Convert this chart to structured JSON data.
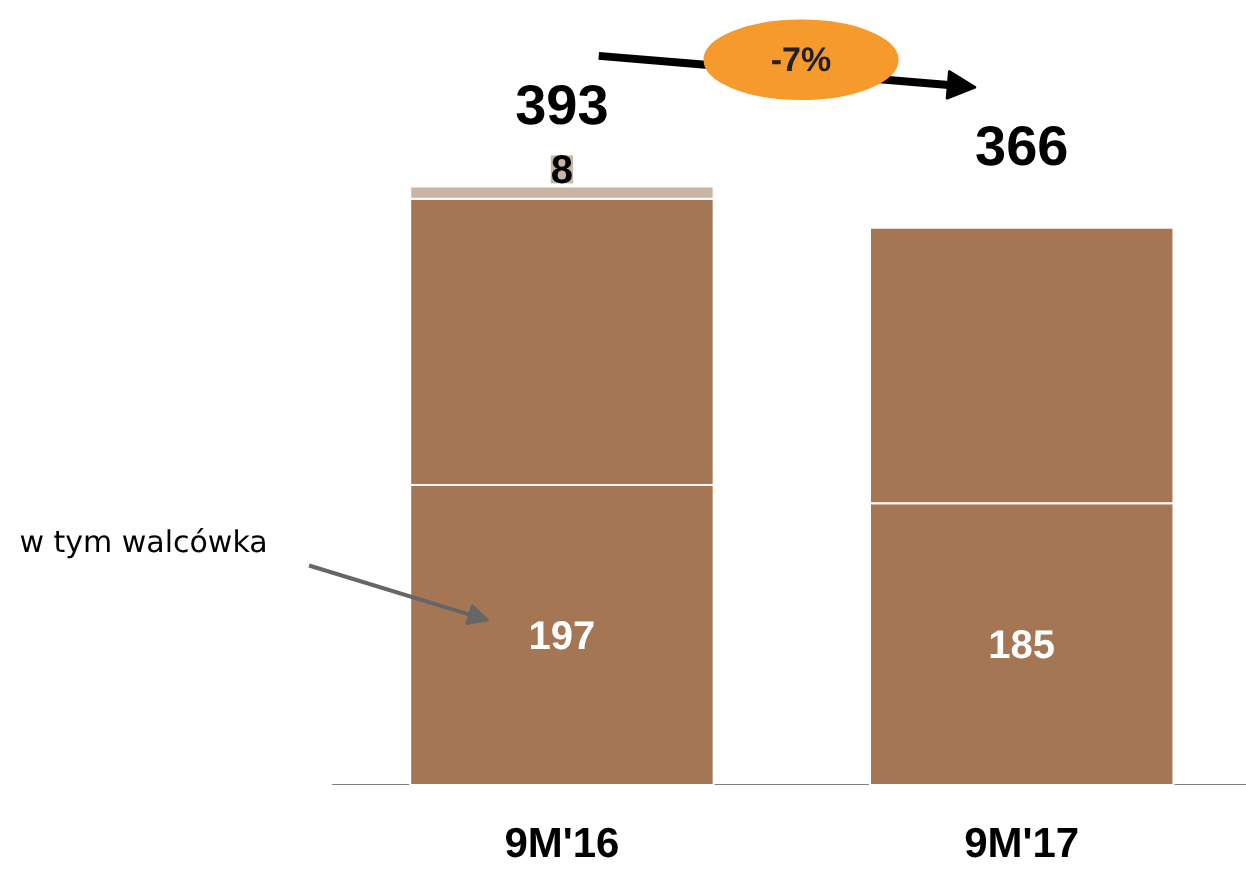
{
  "chart_data": {
    "type": "bar",
    "stacked": true,
    "categories": [
      "9M'16",
      "9M'17"
    ],
    "series": [
      {
        "color": "#a57654",
        "values": [
          197,
          185
        ],
        "value_labels": [
          "197",
          "185"
        ]
      },
      {
        "color": "#a57654",
        "values": [
          188,
          181
        ],
        "value_labels": [
          null,
          null
        ]
      },
      {
        "color": "#c9b5a3",
        "values": [
          8,
          null
        ],
        "value_labels": [
          "8",
          null
        ]
      }
    ],
    "totals": [
      "393",
      "366"
    ],
    "annotations": [
      "-7%",
      "w tym walcówka"
    ]
  }
}
